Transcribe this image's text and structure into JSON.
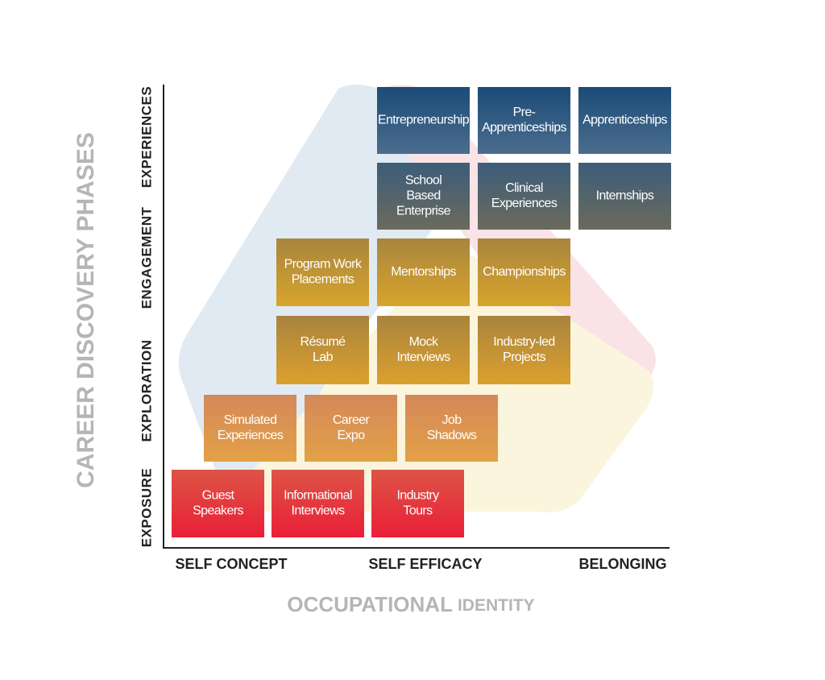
{
  "y_axis": {
    "title": "CAREER DISCOVERY PHASES",
    "phases": [
      "EXPOSURE",
      "EXPLORATION",
      "ENGAGEMENT",
      "EXPERIENCES"
    ]
  },
  "x_axis": {
    "title": "OCCUPATIONAL",
    "title_suffix": "IDENTITY",
    "stages": [
      "SELF CONCEPT",
      "SELF EFFICACY",
      "BELONGING"
    ]
  },
  "rows": [
    {
      "boxes": [
        {
          "lines": [
            "Entrepreneurship"
          ]
        },
        {
          "lines": [
            "Pre-",
            "Apprenticeships"
          ]
        },
        {
          "lines": [
            "Apprenticeships"
          ]
        }
      ]
    },
    {
      "boxes": [
        {
          "lines": [
            "School",
            "Based",
            "Enterprise"
          ]
        },
        {
          "lines": [
            "Clinical",
            "Experiences"
          ]
        },
        {
          "lines": [
            "Internships"
          ]
        }
      ]
    },
    {
      "boxes": [
        {
          "lines": [
            "Program Work",
            "Placements"
          ]
        },
        {
          "lines": [
            "Mentorships"
          ]
        },
        {
          "lines": [
            "Championships"
          ]
        }
      ]
    },
    {
      "boxes": [
        {
          "lines": [
            "Résumé",
            "Lab"
          ]
        },
        {
          "lines": [
            "Mock",
            "Interviews"
          ]
        },
        {
          "lines": [
            "Industry-led",
            "Projects"
          ]
        }
      ]
    },
    {
      "boxes": [
        {
          "lines": [
            "Simulated",
            "Experiences"
          ]
        },
        {
          "lines": [
            "Career",
            "Expo"
          ]
        },
        {
          "lines": [
            "Job",
            "Shadows"
          ]
        }
      ]
    },
    {
      "boxes": [
        {
          "lines": [
            "Guest",
            "Speakers"
          ]
        },
        {
          "lines": [
            "Informational",
            "Interviews"
          ]
        },
        {
          "lines": [
            "Industry",
            "Tours"
          ]
        }
      ]
    }
  ]
}
